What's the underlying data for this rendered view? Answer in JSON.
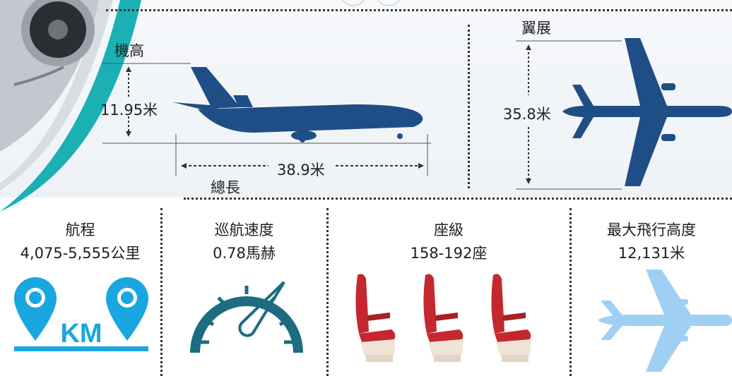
{
  "specs": {
    "height": {
      "title": "機高",
      "value": "11.95米"
    },
    "length": {
      "title": "總長",
      "value": "38.9米"
    },
    "wingspan": {
      "title": "翼展",
      "value": "35.8米"
    }
  },
  "stats": [
    {
      "title": "航程",
      "value": "4,075-5,555公里",
      "icon": "km-map-pin-icon",
      "icon_text": "KM"
    },
    {
      "title": "巡航速度",
      "value": "0.78馬赫",
      "icon": "speedometer-icon"
    },
    {
      "title": "座級",
      "value": "158-192座",
      "icon": "seat-icon"
    },
    {
      "title": "最大飛行高度",
      "value": "12,131米",
      "icon": "airplane-icon"
    }
  ],
  "colors": {
    "plane_dark": "#1f4e86",
    "plane_light": "#9fd0f3",
    "pin_blue": "#1aa6e0",
    "gauge_teal": "#1d6c80",
    "seat_red": "#c4282e",
    "seat_base": "#efe4d6",
    "teal_band": "#1bb0b4"
  }
}
